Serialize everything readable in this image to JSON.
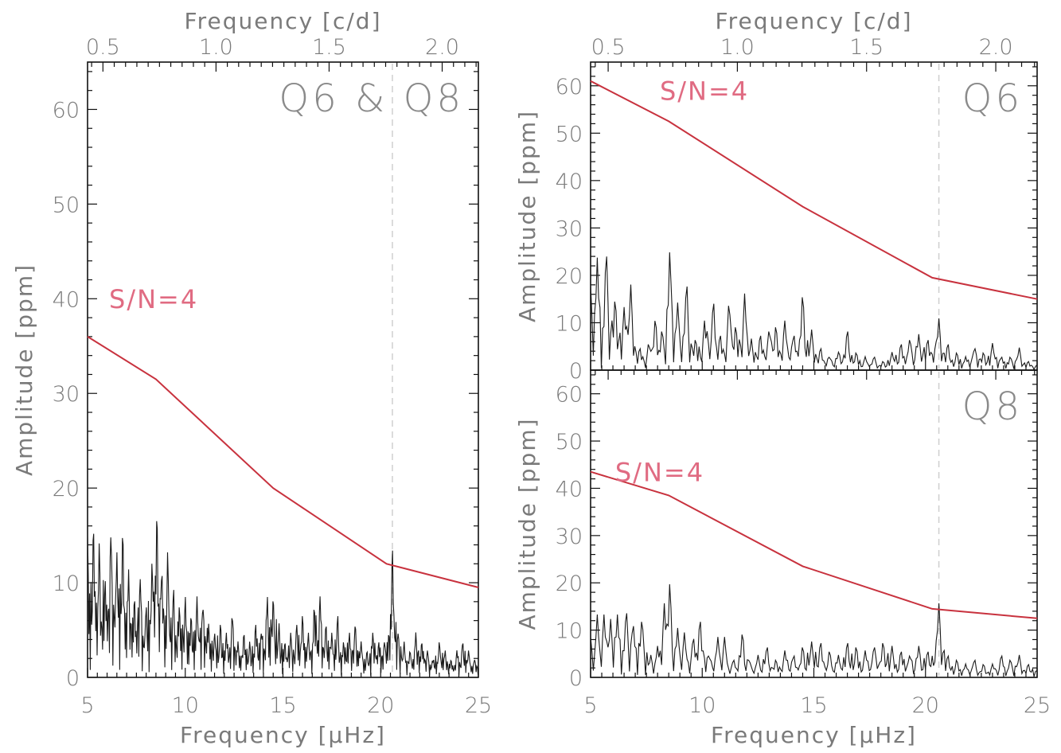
{
  "chart_data": [
    {
      "type": "line",
      "panel": "combined",
      "label": "Q6 & Q8",
      "xlabel": "Frequency [µHz]",
      "ylabel": "Amplitude [ppm]",
      "x2label": "Frequency [c/d]",
      "xlim": [
        5,
        25
      ],
      "ylim": [
        0,
        65
      ],
      "xticks": [
        "5",
        "10",
        "15",
        "20",
        "25"
      ],
      "yticks": [
        "0",
        "10",
        "20",
        "30",
        "40",
        "50",
        "60"
      ],
      "x2ticks": [
        "0.5",
        "1.0",
        "1.5",
        "2.0"
      ],
      "threshold_label": "S/N=4",
      "threshold": {
        "x": [
          5,
          8.5,
          14.5,
          20.3,
          25
        ],
        "y": [
          36,
          31.5,
          20,
          12,
          9.5
        ]
      },
      "marked_frequency": 20.6,
      "spectrum_peaks": {
        "x": [
          5.0,
          5.3,
          5.6,
          5.9,
          6.2,
          6.5,
          6.8,
          7.1,
          7.4,
          7.7,
          8.0,
          8.3,
          8.55,
          8.8,
          9.1,
          9.4,
          9.7,
          10.0,
          10.3,
          10.6,
          10.9,
          11.2,
          11.5,
          11.8,
          12.1,
          12.4,
          12.7,
          13.0,
          13.3,
          13.6,
          13.9,
          14.2,
          14.5,
          14.8,
          15.1,
          15.4,
          15.7,
          16.0,
          16.3,
          16.6,
          16.9,
          17.2,
          17.5,
          17.8,
          18.1,
          18.4,
          18.7,
          19.0,
          19.3,
          19.6,
          19.9,
          20.2,
          20.6,
          20.9,
          21.2,
          21.5,
          21.8,
          22.1,
          22.4,
          22.7,
          23.0,
          23.3,
          23.6,
          23.9,
          24.2,
          24.5,
          24.8
        ],
        "y": [
          16,
          17,
          15,
          11,
          16,
          14,
          16.5,
          12,
          9,
          11,
          8,
          13,
          18.5,
          12,
          14,
          10,
          8,
          9,
          7,
          9,
          8,
          6,
          5,
          6,
          5,
          7,
          4,
          5,
          4,
          6,
          5,
          9,
          9,
          6,
          4,
          5,
          6,
          7,
          5,
          8,
          9,
          6,
          5,
          7,
          4,
          5,
          6,
          4,
          3,
          5,
          4,
          4,
          14.5,
          5,
          4,
          3,
          5,
          4,
          3,
          2,
          4,
          3,
          2,
          3,
          4,
          3,
          2
        ]
      }
    },
    {
      "type": "line",
      "panel": "top-right",
      "label": "Q6",
      "xlabel": "",
      "ylabel": "Amplitude [ppm]",
      "x2label": "Frequency [c/d]",
      "xlim": [
        5,
        25
      ],
      "ylim": [
        0,
        65
      ],
      "yticks": [
        "0",
        "10",
        "20",
        "30",
        "40",
        "50",
        "60"
      ],
      "x2ticks": [
        "0.5",
        "1.0",
        "1.5",
        "2.0"
      ],
      "threshold_label": "S/N=4",
      "threshold": {
        "x": [
          5,
          8.5,
          14.5,
          20.3,
          25
        ],
        "y": [
          61,
          52.5,
          34.5,
          19.5,
          15
        ]
      },
      "marked_frequency": 20.6,
      "spectrum_peaks": {
        "x": [
          5.0,
          5.3,
          5.7,
          6.1,
          6.5,
          6.8,
          7.2,
          7.6,
          7.9,
          8.2,
          8.55,
          8.9,
          9.3,
          9.7,
          10.1,
          10.5,
          10.8,
          11.2,
          11.5,
          11.9,
          12.2,
          12.6,
          13.0,
          13.3,
          13.7,
          14.1,
          14.5,
          14.9,
          15.3,
          15.7,
          16.1,
          16.5,
          16.9,
          17.3,
          17.7,
          18.1,
          18.5,
          18.9,
          19.3,
          19.7,
          20.1,
          20.6,
          21.0,
          21.4,
          21.8,
          22.2,
          22.6,
          23.0,
          23.4,
          23.8,
          24.2,
          24.6
        ],
        "y": [
          19,
          25,
          26.5,
          16,
          14,
          19,
          5,
          6,
          11.5,
          9,
          26.5,
          15,
          19.5,
          7,
          11,
          15.5,
          8,
          15,
          10,
          17,
          7,
          8,
          9,
          10,
          11,
          8,
          17,
          9,
          5,
          3,
          4,
          9,
          4,
          3,
          3,
          2,
          4,
          6,
          7,
          8,
          7,
          11.5,
          6,
          4,
          3,
          5,
          4,
          6,
          3,
          3,
          5,
          2
        ]
      }
    },
    {
      "type": "line",
      "panel": "bottom-right",
      "label": "Q8",
      "xlabel": "Frequency [µHz]",
      "ylabel": "Amplitude [ppm]",
      "xlim": [
        5,
        25
      ],
      "ylim": [
        0,
        65
      ],
      "xticks": [
        "5",
        "10",
        "15",
        "20",
        "25"
      ],
      "yticks": [
        "0",
        "10",
        "20",
        "30",
        "40",
        "50",
        "60"
      ],
      "threshold_label": "S/N=4",
      "threshold": {
        "x": [
          5,
          8.5,
          14.5,
          20.3,
          25
        ],
        "y": [
          43.5,
          38.5,
          23.5,
          14.5,
          12.5
        ]
      },
      "marked_frequency": 20.6,
      "spectrum_peaks": {
        "x": [
          5.0,
          5.3,
          5.6,
          5.9,
          6.2,
          6.6,
          6.9,
          7.3,
          7.7,
          8.0,
          8.3,
          8.55,
          8.9,
          9.2,
          9.6,
          9.9,
          10.3,
          10.7,
          11.0,
          11.4,
          11.8,
          12.1,
          12.5,
          12.9,
          13.3,
          13.7,
          14.1,
          14.5,
          14.9,
          15.3,
          15.7,
          16.1,
          16.5,
          16.9,
          17.3,
          17.7,
          18.1,
          18.5,
          18.9,
          19.3,
          19.7,
          20.1,
          20.6,
          21.0,
          21.4,
          21.8,
          22.2,
          22.6,
          23.0,
          23.4,
          23.8,
          24.2,
          24.6
        ],
        "y": [
          9,
          14,
          14,
          13,
          14,
          15,
          12,
          13,
          5,
          7,
          16.5,
          21,
          11,
          10,
          9,
          13,
          5,
          9,
          9,
          4,
          10,
          4,
          5,
          7,
          4,
          6,
          5,
          7,
          8,
          8,
          6,
          5,
          8,
          7,
          6,
          7,
          8,
          7,
          6,
          5,
          7,
          6,
          16.5,
          5,
          4,
          3,
          4,
          3,
          3,
          5,
          4,
          5,
          3
        ]
      }
    }
  ]
}
